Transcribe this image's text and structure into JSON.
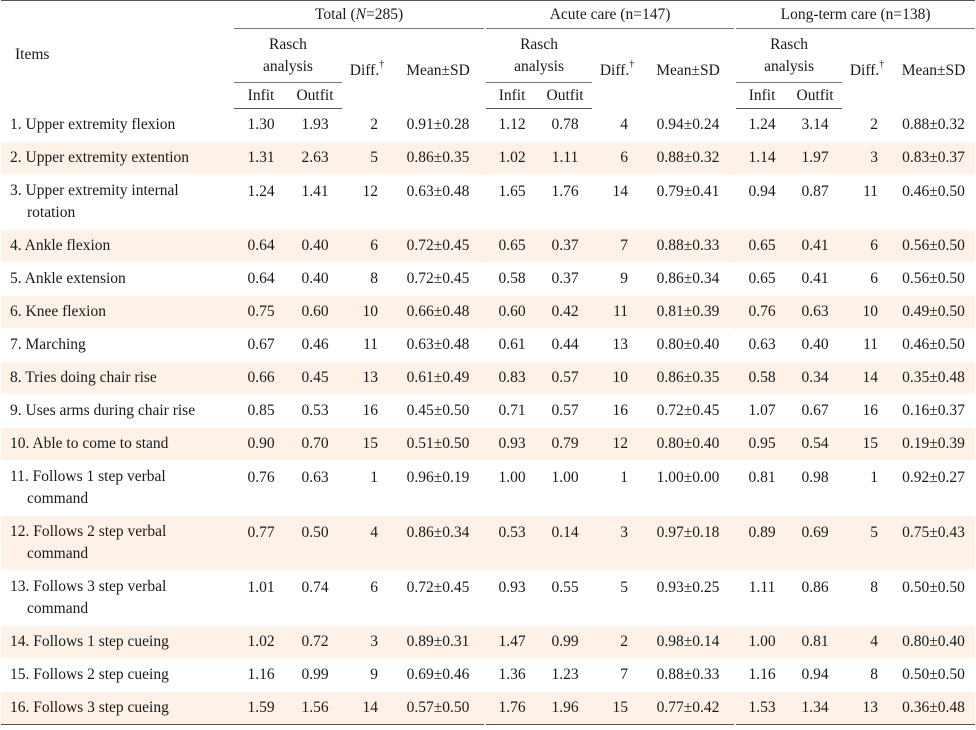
{
  "header": {
    "items_label": "Items",
    "groups": [
      {
        "label": "Total (",
        "italic": "N",
        "suffix": "=285)"
      },
      {
        "label": "Acute care (n=147)",
        "italic": "",
        "suffix": ""
      },
      {
        "label": "Long-term care (n=138)",
        "italic": "",
        "suffix": ""
      }
    ],
    "rasch_label_1": "Rasch",
    "rasch_label_2": "analysis",
    "diff_label": "Diff.",
    "dagger": "†",
    "mean_label": "Mean±SD",
    "infit_label": "Infit",
    "outfit_label": "Outfit"
  },
  "rows": [
    {
      "item": "1. Upper extremity flexion",
      "cont": "",
      "v": [
        "1.30",
        "1.93",
        "2",
        "0.91±0.28",
        "1.12",
        "0.78",
        "4",
        "0.94±0.24",
        "1.24",
        "3.14",
        "2",
        "0.88±0.32"
      ]
    },
    {
      "item": "2. Upper extremity extention",
      "cont": "",
      "v": [
        "1.31",
        "2.63",
        "5",
        "0.86±0.35",
        "1.02",
        "1.11",
        "6",
        "0.88±0.32",
        "1.14",
        "1.97",
        "3",
        "0.83±0.37"
      ]
    },
    {
      "item": "3. Upper extremity internal",
      "cont": "rotation",
      "v": [
        "1.24",
        "1.41",
        "12",
        "0.63±0.48",
        "1.65",
        "1.76",
        "14",
        "0.79±0.41",
        "0.94",
        "0.87",
        "11",
        "0.46±0.50"
      ]
    },
    {
      "item": "4. Ankle flexion",
      "cont": "",
      "v": [
        "0.64",
        "0.40",
        "6",
        "0.72±0.45",
        "0.65",
        "0.37",
        "7",
        "0.88±0.33",
        "0.65",
        "0.41",
        "6",
        "0.56±0.50"
      ]
    },
    {
      "item": "5. Ankle extension",
      "cont": "",
      "v": [
        "0.64",
        "0.40",
        "8",
        "0.72±0.45",
        "0.58",
        "0.37",
        "9",
        "0.86±0.34",
        "0.65",
        "0.41",
        "6",
        "0.56±0.50"
      ]
    },
    {
      "item": "6. Knee flexion",
      "cont": "",
      "v": [
        "0.75",
        "0.60",
        "10",
        "0.66±0.48",
        "0.60",
        "0.42",
        "11",
        "0.81±0.39",
        "0.76",
        "0.63",
        "10",
        "0.49±0.50"
      ]
    },
    {
      "item": "7. Marching",
      "cont": "",
      "v": [
        "0.67",
        "0.46",
        "11",
        "0.63±0.48",
        "0.61",
        "0.44",
        "13",
        "0.80±0.40",
        "0.63",
        "0.40",
        "11",
        "0.46±0.50"
      ]
    },
    {
      "item": "8. Tries doing chair rise",
      "cont": "",
      "v": [
        "0.66",
        "0.45",
        "13",
        "0.61±0.49",
        "0.83",
        "0.57",
        "10",
        "0.86±0.35",
        "0.58",
        "0.34",
        "14",
        "0.35±0.48"
      ]
    },
    {
      "item": "9. Uses arms during chair rise",
      "cont": "",
      "v": [
        "0.85",
        "0.53",
        "16",
        "0.45±0.50",
        "0.71",
        "0.57",
        "16",
        "0.72±0.45",
        "1.07",
        "0.67",
        "16",
        "0.16±0.37"
      ]
    },
    {
      "item": "10. Able to come to stand",
      "cont": "",
      "v": [
        "0.90",
        "0.70",
        "15",
        "0.51±0.50",
        "0.93",
        "0.79",
        "12",
        "0.80±0.40",
        "0.95",
        "0.54",
        "15",
        "0.19±0.39"
      ]
    },
    {
      "item": "11. Follows 1 step verbal",
      "cont": "command",
      "v": [
        "0.76",
        "0.63",
        "1",
        "0.96±0.19",
        "1.00",
        "1.00",
        "1",
        "1.00±0.00",
        "0.81",
        "0.98",
        "1",
        "0.92±0.27"
      ]
    },
    {
      "item": "12. Follows 2 step verbal",
      "cont": "command",
      "v": [
        "0.77",
        "0.50",
        "4",
        "0.86±0.34",
        "0.53",
        "0.14",
        "3",
        "0.97±0.18",
        "0.89",
        "0.69",
        "5",
        "0.75±0.43"
      ]
    },
    {
      "item": "13. Follows 3 step verbal",
      "cont": "command",
      "v": [
        "1.01",
        "0.74",
        "6",
        "0.72±0.45",
        "0.93",
        "0.55",
        "5",
        "0.93±0.25",
        "1.11",
        "0.86",
        "8",
        "0.50±0.50"
      ]
    },
    {
      "item": "14. Follows 1 step cueing",
      "cont": "",
      "v": [
        "1.02",
        "0.72",
        "3",
        "0.89±0.31",
        "1.47",
        "0.99",
        "2",
        "0.98±0.14",
        "1.00",
        "0.81",
        "4",
        "0.80±0.40"
      ]
    },
    {
      "item": "15. Follows 2 step cueing",
      "cont": "",
      "v": [
        "1.16",
        "0.99",
        "9",
        "0.69±0.46",
        "1.36",
        "1.23",
        "7",
        "0.88±0.33",
        "1.16",
        "0.94",
        "8",
        "0.50±0.50"
      ]
    },
    {
      "item": "16. Follows 3 step cueing",
      "cont": "",
      "v": [
        "1.59",
        "1.56",
        "14",
        "0.57±0.50",
        "1.76",
        "1.96",
        "15",
        "0.77±0.42",
        "1.53",
        "1.34",
        "13",
        "0.36±0.48"
      ]
    }
  ]
}
